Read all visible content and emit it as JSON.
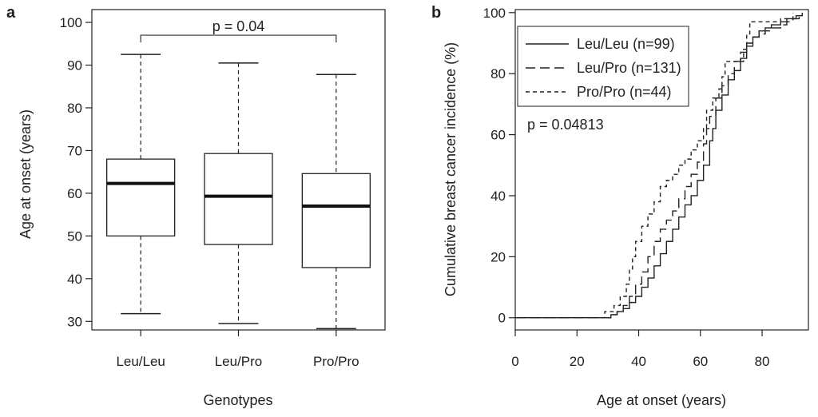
{
  "chart_data": [
    {
      "type": "box",
      "panel_label": "a",
      "xlabel": "Genotypes",
      "ylabel": "Age at onset (years)",
      "ylim": [
        28,
        103
      ],
      "yticks": [
        30,
        40,
        50,
        60,
        70,
        80,
        90,
        100
      ],
      "categories": [
        "Leu/Leu",
        "Leu/Pro",
        "Pro/Pro"
      ],
      "boxes": [
        {
          "category": "Leu/Leu",
          "whisker_low": 31.8,
          "q1": 50,
          "median": 62.3,
          "q3": 68,
          "whisker_high": 92.5
        },
        {
          "category": "Leu/Pro",
          "whisker_low": 29.5,
          "q1": 48,
          "median": 59.3,
          "q3": 69.3,
          "whisker_high": 90.5
        },
        {
          "category": "Pro/Pro",
          "whisker_low": 28.3,
          "q1": 42.6,
          "median": 57,
          "q3": 64.6,
          "whisker_high": 87.8
        }
      ],
      "annotation": {
        "text": "p = 0.04",
        "from": "Leu/Leu",
        "to": "Pro/Pro",
        "y": 97
      }
    },
    {
      "type": "step",
      "panel_label": "b",
      "xlabel": "Age at onset (years)",
      "ylabel": "Cumulative breast cancer incidence (%)",
      "xlim": [
        0,
        95
      ],
      "ylim": [
        -4,
        101
      ],
      "xticks": [
        0,
        20,
        40,
        60,
        80
      ],
      "yticks": [
        0,
        20,
        40,
        60,
        80,
        100
      ],
      "legend_position": "top-left",
      "p_value_text": "p = 0.04813",
      "series": [
        {
          "name": "Leu/Leu (n=99)",
          "line_style": "solid",
          "points": [
            [
              0,
              0
            ],
            [
              30,
              0
            ],
            [
              31,
              1
            ],
            [
              33,
              2
            ],
            [
              35,
              3
            ],
            [
              37,
              5
            ],
            [
              39,
              7
            ],
            [
              41,
              10
            ],
            [
              43,
              13
            ],
            [
              45,
              17
            ],
            [
              47,
              21
            ],
            [
              49,
              25
            ],
            [
              51,
              29
            ],
            [
              53,
              33
            ],
            [
              55,
              37
            ],
            [
              57,
              40
            ],
            [
              59,
              45
            ],
            [
              61,
              50
            ],
            [
              63,
              58
            ],
            [
              64,
              62
            ],
            [
              65,
              68
            ],
            [
              67,
              73
            ],
            [
              69,
              78
            ],
            [
              71,
              81
            ],
            [
              73,
              85
            ],
            [
              75,
              89
            ],
            [
              77,
              92
            ],
            [
              79,
              94
            ],
            [
              81,
              95
            ],
            [
              83,
              96
            ],
            [
              86,
              97
            ],
            [
              88,
              98
            ],
            [
              91,
              99
            ],
            [
              93,
              100
            ]
          ]
        },
        {
          "name": "Leu/Pro (n=131)",
          "line_style": "dashed",
          "points": [
            [
              0,
              0
            ],
            [
              30,
              0
            ],
            [
              31,
              1
            ],
            [
              33,
              2
            ],
            [
              35,
              4
            ],
            [
              37,
              7
            ],
            [
              39,
              11
            ],
            [
              41,
              15
            ],
            [
              43,
              20
            ],
            [
              45,
              25
            ],
            [
              47,
              29
            ],
            [
              49,
              32
            ],
            [
              51,
              35
            ],
            [
              53,
              39
            ],
            [
              55,
              43
            ],
            [
              57,
              47
            ],
            [
              59,
              51
            ],
            [
              61,
              57
            ],
            [
              62,
              62
            ],
            [
              63,
              66
            ],
            [
              65,
              72
            ],
            [
              67,
              76
            ],
            [
              69,
              80
            ],
            [
              71,
              84
            ],
            [
              73,
              87
            ],
            [
              75,
              90
            ],
            [
              77,
              92
            ],
            [
              79,
              93
            ],
            [
              81,
              94
            ],
            [
              83,
              95
            ],
            [
              86,
              96
            ],
            [
              88,
              97
            ],
            [
              90,
              98
            ],
            [
              92,
              100
            ]
          ]
        },
        {
          "name": "Pro/Pro (n=44)",
          "line_style": "dotted",
          "points": [
            [
              0,
              0
            ],
            [
              28,
              0
            ],
            [
              29,
              2
            ],
            [
              32,
              4
            ],
            [
              34,
              7
            ],
            [
              36,
              11
            ],
            [
              37,
              16
            ],
            [
              38,
              20
            ],
            [
              39,
              25
            ],
            [
              41,
              30
            ],
            [
              43,
              34
            ],
            [
              45,
              38
            ],
            [
              47,
              43
            ],
            [
              49,
              45
            ],
            [
              51,
              47
            ],
            [
              53,
              50
            ],
            [
              55,
              52
            ],
            [
              57,
              55
            ],
            [
              59,
              58
            ],
            [
              61,
              62
            ],
            [
              62,
              68
            ],
            [
              64,
              72
            ],
            [
              66,
              75
            ],
            [
              67,
              79
            ],
            [
              68,
              84
            ],
            [
              72,
              84
            ],
            [
              74,
              88
            ],
            [
              75,
              93
            ],
            [
              76,
              97
            ],
            [
              85,
              97
            ],
            [
              86,
              98
            ],
            [
              89,
              98
            ],
            [
              90,
              100
            ]
          ]
        }
      ]
    }
  ]
}
